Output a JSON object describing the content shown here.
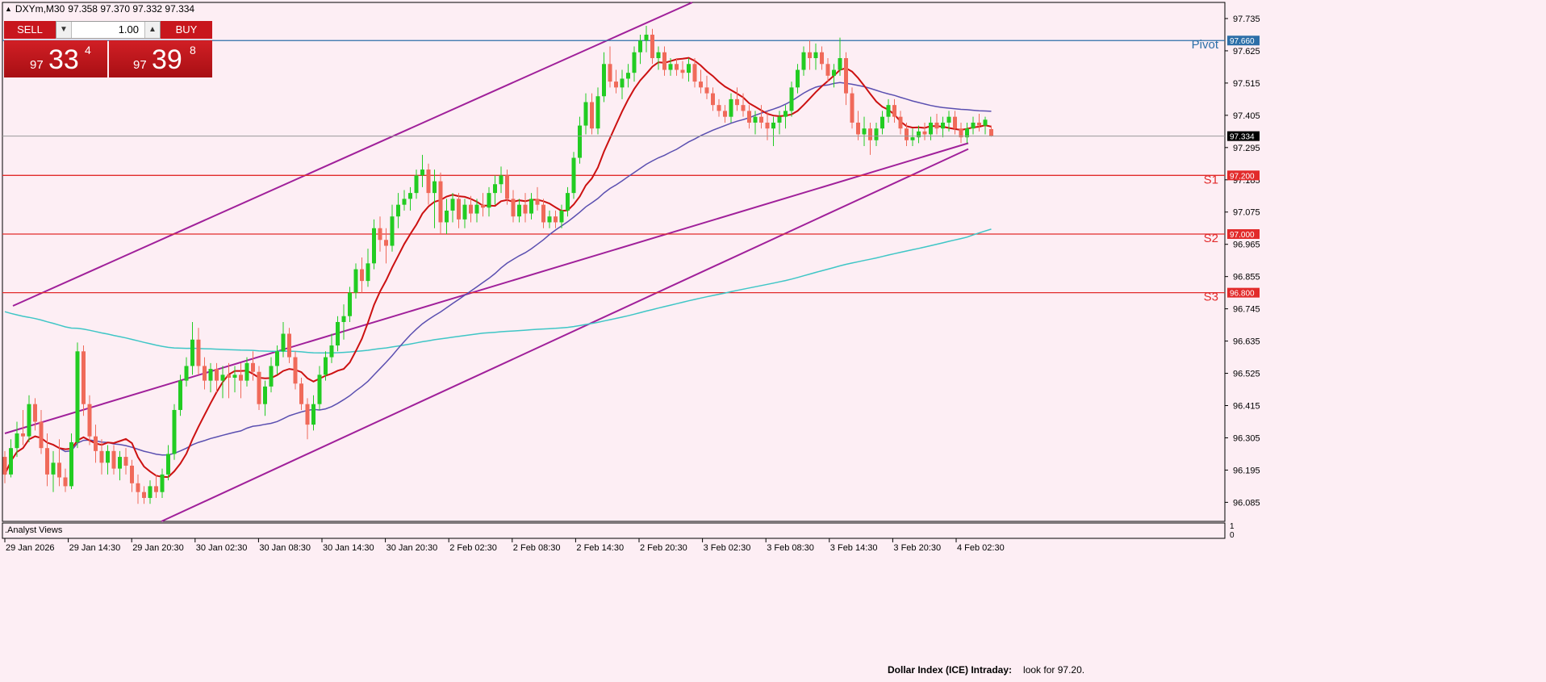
{
  "symbol": {
    "name": "DXYm,M30",
    "ohlc": "97.358 97.370 97.332 97.334"
  },
  "trade_panel": {
    "sell_label": "SELL",
    "buy_label": "BUY",
    "lot": "1.00",
    "sell_price": {
      "small": "97",
      "big": "33",
      "sup": "4"
    },
    "buy_price": {
      "small": "97",
      "big": "39",
      "sup": "8"
    }
  },
  "indicator_pane": {
    "name": ".Analyst Views",
    "scale_top": "1",
    "scale_bottom": "0"
  },
  "footer": {
    "title": "Dollar Index (ICE) Intraday:",
    "text": "look for 97.20."
  },
  "colors": {
    "background": "#fdeef4",
    "bull": "#22cc22",
    "bear": "#f06a5a",
    "ma_fast": "#cc1111",
    "ma_mid": "#5a4fb0",
    "ma_slow": "#3fc6c6",
    "channel": "#a0209a",
    "level": "#e22b2b",
    "pivot": "#2c6fa8"
  },
  "chart_data": {
    "type": "candlestick",
    "ylim": [
      96.02,
      97.79
    ],
    "yticks": [
      "97.735",
      "97.625",
      "97.515",
      "97.405",
      "97.295",
      "97.185",
      "97.075",
      "96.965",
      "96.855",
      "96.745",
      "96.635",
      "96.525",
      "96.415",
      "96.305",
      "96.195",
      "96.085"
    ],
    "xticks": [
      "29 Jan 2026",
      "29 Jan 14:30",
      "29 Jan 20:30",
      "30 Jan 02:30",
      "30 Jan 08:30",
      "30 Jan 14:30",
      "30 Jan 20:30",
      "2 Feb 02:30",
      "2 Feb 08:30",
      "2 Feb 14:30",
      "2 Feb 20:30",
      "3 Feb 02:30",
      "3 Feb 08:30",
      "3 Feb 14:30",
      "3 Feb 20:30",
      "4 Feb 02:30"
    ],
    "current_price": "97.334",
    "levels": [
      {
        "name": "Pivot",
        "value": 97.66,
        "tag": "97.660",
        "kind": "pivot"
      },
      {
        "name": "S1",
        "value": 97.2,
        "tag": "97.200",
        "kind": "support"
      },
      {
        "name": "S2",
        "value": 97.0,
        "tag": "97.000",
        "kind": "support"
      },
      {
        "name": "S3",
        "value": 96.8,
        "tag": "96.800",
        "kind": "support"
      }
    ],
    "candles": [
      [
        96.24,
        96.26,
        96.15,
        96.18
      ],
      [
        96.18,
        96.3,
        96.17,
        96.27
      ],
      [
        96.27,
        96.36,
        96.24,
        96.32
      ],
      [
        96.32,
        96.4,
        96.28,
        96.31
      ],
      [
        96.31,
        96.45,
        96.29,
        96.42
      ],
      [
        96.42,
        96.44,
        96.33,
        96.36
      ],
      [
        96.36,
        96.4,
        96.25,
        96.27
      ],
      [
        96.27,
        96.32,
        96.14,
        96.18
      ],
      [
        96.18,
        96.26,
        96.12,
        96.22
      ],
      [
        96.22,
        96.3,
        96.14,
        96.17
      ],
      [
        96.17,
        96.2,
        96.12,
        96.14
      ],
      [
        96.14,
        96.32,
        96.13,
        96.29
      ],
      [
        96.29,
        96.63,
        96.27,
        96.6
      ],
      [
        96.6,
        96.62,
        96.38,
        96.42
      ],
      [
        96.42,
        96.45,
        96.28,
        96.31
      ],
      [
        96.31,
        96.35,
        96.22,
        96.26
      ],
      [
        96.26,
        96.3,
        96.18,
        96.22
      ],
      [
        96.22,
        96.28,
        96.18,
        96.26
      ],
      [
        96.26,
        96.28,
        96.18,
        96.2
      ],
      [
        96.2,
        96.26,
        96.16,
        96.24
      ],
      [
        96.24,
        96.27,
        96.18,
        96.21
      ],
      [
        96.21,
        96.23,
        96.12,
        96.15
      ],
      [
        96.15,
        96.18,
        96.08,
        96.12
      ],
      [
        96.12,
        96.14,
        96.08,
        96.1
      ],
      [
        96.1,
        96.16,
        96.08,
        96.14
      ],
      [
        96.14,
        96.18,
        96.1,
        96.12
      ],
      [
        96.12,
        96.2,
        96.1,
        96.18
      ],
      [
        96.18,
        96.28,
        96.16,
        96.25
      ],
      [
        96.25,
        96.42,
        96.23,
        96.4
      ],
      [
        96.4,
        96.52,
        96.38,
        96.5
      ],
      [
        96.5,
        96.58,
        96.48,
        96.55
      ],
      [
        96.55,
        96.7,
        96.52,
        96.64
      ],
      [
        96.64,
        96.68,
        96.52,
        96.55
      ],
      [
        96.55,
        96.58,
        96.47,
        96.5
      ],
      [
        96.5,
        96.56,
        96.46,
        96.54
      ],
      [
        96.54,
        96.56,
        96.46,
        96.5
      ],
      [
        96.5,
        96.55,
        96.44,
        96.52
      ],
      [
        96.52,
        96.56,
        96.44,
        96.51
      ],
      [
        96.51,
        96.55,
        96.46,
        96.52
      ],
      [
        96.52,
        96.56,
        96.44,
        96.5
      ],
      [
        96.5,
        96.58,
        96.48,
        96.56
      ],
      [
        96.56,
        96.6,
        96.5,
        96.53
      ],
      [
        96.53,
        96.55,
        96.4,
        96.42
      ],
      [
        96.42,
        96.5,
        96.38,
        96.48
      ],
      [
        96.48,
        96.58,
        96.46,
        96.55
      ],
      [
        96.55,
        96.62,
        96.52,
        96.6
      ],
      [
        96.6,
        96.7,
        96.58,
        96.66
      ],
      [
        96.66,
        96.68,
        96.56,
        96.58
      ],
      [
        96.58,
        96.6,
        96.47,
        96.49
      ],
      [
        96.49,
        96.51,
        96.4,
        96.42
      ],
      [
        96.42,
        96.44,
        96.3,
        96.35
      ],
      [
        96.35,
        96.45,
        96.33,
        96.42
      ],
      [
        96.42,
        96.55,
        96.4,
        96.52
      ],
      [
        96.52,
        96.6,
        96.5,
        96.58
      ],
      [
        96.58,
        96.66,
        96.56,
        96.62
      ],
      [
        96.62,
        96.72,
        96.6,
        96.7
      ],
      [
        96.7,
        96.76,
        96.64,
        96.72
      ],
      [
        96.72,
        96.82,
        96.7,
        96.8
      ],
      [
        96.8,
        96.9,
        96.78,
        96.88
      ],
      [
        96.88,
        96.92,
        96.8,
        96.84
      ],
      [
        96.84,
        96.95,
        96.82,
        96.9
      ],
      [
        96.9,
        97.05,
        96.88,
        97.02
      ],
      [
        97.02,
        97.06,
        96.94,
        96.98
      ],
      [
        96.98,
        97.02,
        96.9,
        96.96
      ],
      [
        96.96,
        97.1,
        96.94,
        97.06
      ],
      [
        97.06,
        97.14,
        97.02,
        97.1
      ],
      [
        97.1,
        97.15,
        97.08,
        97.12
      ],
      [
        97.12,
        97.16,
        97.08,
        97.14
      ],
      [
        97.14,
        97.22,
        97.12,
        97.2
      ],
      [
        97.2,
        97.27,
        97.16,
        97.22
      ],
      [
        97.22,
        97.24,
        97.1,
        97.14
      ],
      [
        97.14,
        97.22,
        97.02,
        97.18
      ],
      [
        97.18,
        97.21,
        97.0,
        97.04
      ],
      [
        97.04,
        97.12,
        97.0,
        97.08
      ],
      [
        97.08,
        97.14,
        97.04,
        97.12
      ],
      [
        97.12,
        97.14,
        97.02,
        97.05
      ],
      [
        97.05,
        97.12,
        97.02,
        97.1
      ],
      [
        97.1,
        97.13,
        97.04,
        97.07
      ],
      [
        97.07,
        97.12,
        97.04,
        97.1
      ],
      [
        97.1,
        97.14,
        97.06,
        97.09
      ],
      [
        97.09,
        97.16,
        97.06,
        97.14
      ],
      [
        97.14,
        97.2,
        97.1,
        97.17
      ],
      [
        97.17,
        97.23,
        97.14,
        97.2
      ],
      [
        97.2,
        97.22,
        97.1,
        97.12
      ],
      [
        97.12,
        97.15,
        97.04,
        97.06
      ],
      [
        97.06,
        97.12,
        97.04,
        97.1
      ],
      [
        97.1,
        97.14,
        97.04,
        97.07
      ],
      [
        97.07,
        97.14,
        97.05,
        97.12
      ],
      [
        97.12,
        97.16,
        97.08,
        97.1
      ],
      [
        97.1,
        97.12,
        97.02,
        97.04
      ],
      [
        97.04,
        97.08,
        97.02,
        97.06
      ],
      [
        97.06,
        97.08,
        97.02,
        97.04
      ],
      [
        97.04,
        97.1,
        97.02,
        97.08
      ],
      [
        97.08,
        97.16,
        97.06,
        97.14
      ],
      [
        97.14,
        97.28,
        97.12,
        97.26
      ],
      [
        97.26,
        97.4,
        97.24,
        97.37
      ],
      [
        97.37,
        97.48,
        97.34,
        97.45
      ],
      [
        97.45,
        97.48,
        97.34,
        97.36
      ],
      [
        97.36,
        97.5,
        97.34,
        97.47
      ],
      [
        97.47,
        97.62,
        97.45,
        97.58
      ],
      [
        97.58,
        97.64,
        97.5,
        97.52
      ],
      [
        97.52,
        97.56,
        97.48,
        97.5
      ],
      [
        97.5,
        97.56,
        97.46,
        97.53
      ],
      [
        97.53,
        97.58,
        97.5,
        97.55
      ],
      [
        97.55,
        97.64,
        97.52,
        97.62
      ],
      [
        97.62,
        97.68,
        97.58,
        97.66
      ],
      [
        97.66,
        97.71,
        97.62,
        97.68
      ],
      [
        97.68,
        97.7,
        97.58,
        97.6
      ],
      [
        97.6,
        97.64,
        97.56,
        97.62
      ],
      [
        97.62,
        97.64,
        97.54,
        97.56
      ],
      [
        97.56,
        97.6,
        97.54,
        97.58
      ],
      [
        97.58,
        97.6,
        97.54,
        97.56
      ],
      [
        97.56,
        97.59,
        97.53,
        97.55
      ],
      [
        97.55,
        97.6,
        97.52,
        97.58
      ],
      [
        97.58,
        97.6,
        97.5,
        97.52
      ],
      [
        97.52,
        97.56,
        97.48,
        97.5
      ],
      [
        97.5,
        97.54,
        97.46,
        97.48
      ],
      [
        97.48,
        97.5,
        97.42,
        97.44
      ],
      [
        97.44,
        97.46,
        97.4,
        97.42
      ],
      [
        97.42,
        97.44,
        97.38,
        97.4
      ],
      [
        97.4,
        97.48,
        97.38,
        97.46
      ],
      [
        97.46,
        97.5,
        97.42,
        97.44
      ],
      [
        97.44,
        97.48,
        97.4,
        97.42
      ],
      [
        97.42,
        97.44,
        97.36,
        97.38
      ],
      [
        97.38,
        97.42,
        97.34,
        97.4
      ],
      [
        97.4,
        97.44,
        97.36,
        97.38
      ],
      [
        97.38,
        97.42,
        97.32,
        97.36
      ],
      [
        97.36,
        97.4,
        97.3,
        97.38
      ],
      [
        97.38,
        97.42,
        97.34,
        97.4
      ],
      [
        97.4,
        97.44,
        97.36,
        97.42
      ],
      [
        97.42,
        97.52,
        97.4,
        97.5
      ],
      [
        97.5,
        97.58,
        97.48,
        97.56
      ],
      [
        97.56,
        97.64,
        97.54,
        97.62
      ],
      [
        97.62,
        97.66,
        97.56,
        97.6
      ],
      [
        97.6,
        97.65,
        97.56,
        97.62
      ],
      [
        97.62,
        97.64,
        97.56,
        97.58
      ],
      [
        97.58,
        97.6,
        97.52,
        97.54
      ],
      [
        97.54,
        97.58,
        97.5,
        97.56
      ],
      [
        97.56,
        97.67,
        97.54,
        97.6
      ],
      [
        97.6,
        97.62,
        97.44,
        97.48
      ],
      [
        97.48,
        97.5,
        97.36,
        97.38
      ],
      [
        97.38,
        97.42,
        97.32,
        97.34
      ],
      [
        97.34,
        97.4,
        97.3,
        97.36
      ],
      [
        97.36,
        97.38,
        97.27,
        97.32
      ],
      [
        97.32,
        97.38,
        97.3,
        97.36
      ],
      [
        97.36,
        97.42,
        97.34,
        97.4
      ],
      [
        97.4,
        97.46,
        97.38,
        97.44
      ],
      [
        97.44,
        97.46,
        97.38,
        97.4
      ],
      [
        97.4,
        97.42,
        97.34,
        97.36
      ],
      [
        97.36,
        97.38,
        97.3,
        97.32
      ],
      [
        97.32,
        97.36,
        97.3,
        97.33
      ],
      [
        97.33,
        97.37,
        97.31,
        97.35
      ],
      [
        97.35,
        97.38,
        97.32,
        97.34
      ],
      [
        97.34,
        97.4,
        97.32,
        97.38
      ],
      [
        97.38,
        97.41,
        97.34,
        97.36
      ],
      [
        97.36,
        97.4,
        97.33,
        97.38
      ],
      [
        97.38,
        97.42,
        97.35,
        97.4
      ],
      [
        97.4,
        97.42,
        97.34,
        97.36
      ],
      [
        97.36,
        97.38,
        97.31,
        97.33
      ],
      [
        97.33,
        97.38,
        97.31,
        97.36
      ],
      [
        97.36,
        97.4,
        97.34,
        97.38
      ],
      [
        97.38,
        97.41,
        97.35,
        97.37
      ],
      [
        97.37,
        97.4,
        97.34,
        97.39
      ],
      [
        97.358,
        97.37,
        97.332,
        97.334
      ]
    ]
  }
}
